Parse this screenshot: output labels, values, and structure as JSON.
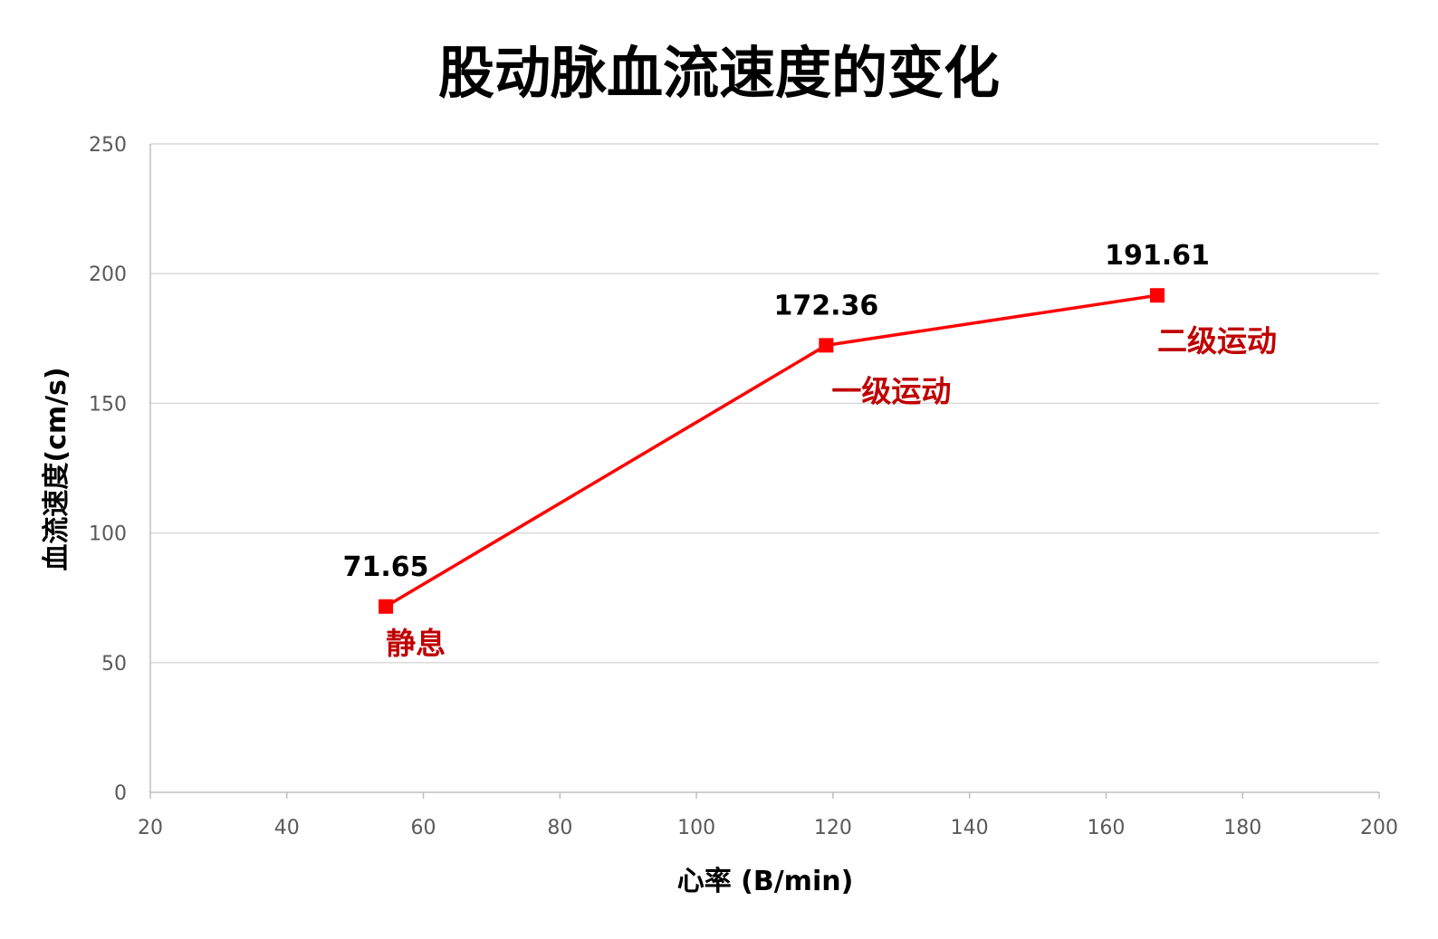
{
  "chart_data": {
    "type": "scatter",
    "title": "股动脉血流速度的变化",
    "xlabel": "心率 (B/min)",
    "ylabel": "血流速度(cm/s)",
    "xlim": [
      20,
      200
    ],
    "ylim": [
      0,
      250
    ],
    "xticks": [
      20,
      40,
      60,
      80,
      100,
      120,
      140,
      160,
      180,
      200
    ],
    "yticks": [
      0,
      50,
      100,
      150,
      200,
      250
    ],
    "grid": true,
    "series": [
      {
        "x": [
          54.5,
          119,
          167.5
        ],
        "y": [
          71.65,
          172.36,
          191.61
        ],
        "value_labels": [
          "71.65",
          "172.36",
          "191.61"
        ],
        "point_labels": [
          "静息",
          "一级运动",
          "二级运动"
        ]
      }
    ],
    "colors": {
      "series": "#ff0000",
      "point_label": "#c00000",
      "grid": "#d9d9d9",
      "axis": "#bfbfbf"
    }
  }
}
